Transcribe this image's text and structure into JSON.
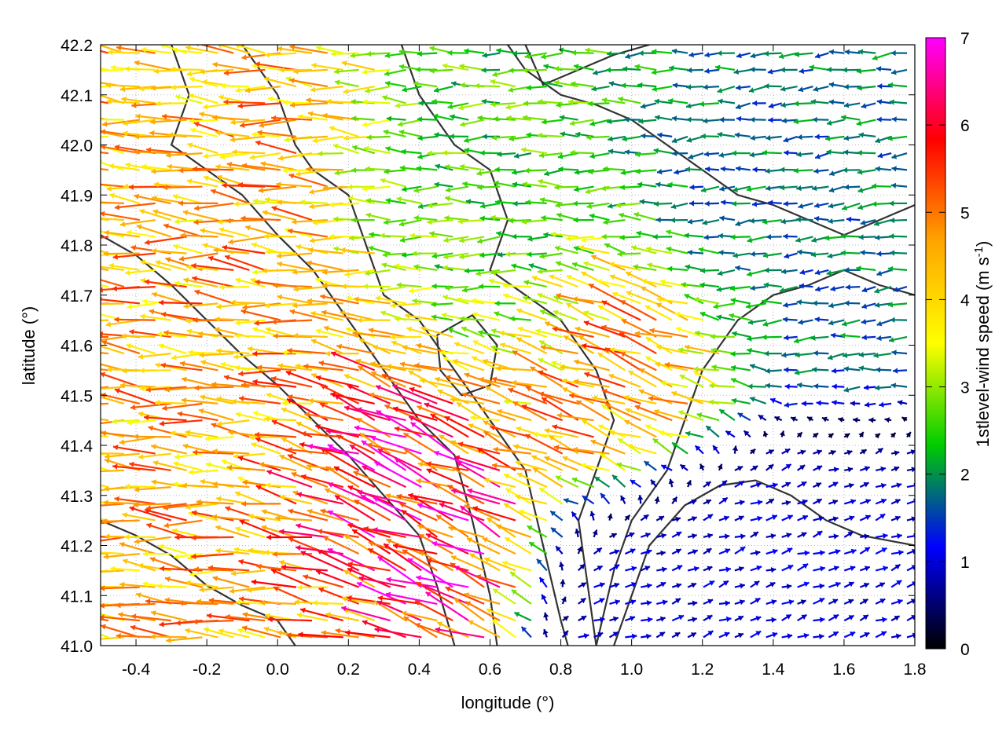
{
  "chart_data": {
    "type": "vector-field",
    "xlabel": "longitude (°)",
    "ylabel": "latitude (°)",
    "xlim": [
      -0.5,
      1.8
    ],
    "ylim": [
      41.0,
      42.2
    ],
    "x_ticks": [
      -0.4,
      -0.2,
      0.0,
      0.2,
      0.4,
      0.6,
      0.8,
      1.0,
      1.2,
      1.4,
      1.6,
      1.8
    ],
    "x_tick_labels": [
      "-0.4",
      "-0.2",
      "0.0",
      "0.2",
      "0.4",
      "0.6",
      "0.8",
      "1.0",
      "1.2",
      "1.4",
      "1.6",
      "1.8"
    ],
    "y_ticks": [
      41.0,
      41.1,
      41.2,
      41.3,
      41.4,
      41.5,
      41.6,
      41.7,
      41.8,
      41.9,
      42.0,
      42.1,
      42.2
    ],
    "y_tick_labels": [
      "41.0",
      "41.1",
      "41.2",
      "41.3",
      "41.4",
      "41.5",
      "41.6",
      "41.7",
      "41.8",
      "41.9",
      "42.0",
      "42.1",
      "42.2"
    ],
    "grid": "dotted",
    "colorbar": {
      "label_main": "1stlevel-wind speed (m s",
      "label_sup": "-1",
      "label_end": ")",
      "range": [
        0,
        7
      ],
      "ticks": [
        "0",
        "1",
        "2",
        "3",
        "4",
        "5",
        "6",
        "7"
      ],
      "palette": [
        "#000000",
        "#0000ff",
        "#00cc00",
        "#ffff00",
        "#ffa500",
        "#ff0000",
        "#ff00ff"
      ]
    },
    "wind_regions": [
      {
        "lon": [
          -0.5,
          0.3
        ],
        "lat": [
          41.0,
          42.2
        ],
        "speed": 4.5,
        "dir_deg": 175
      },
      {
        "lon": [
          0.1,
          0.6
        ],
        "lat": [
          41.15,
          41.55
        ],
        "speed": 6.3,
        "dir_deg": 155
      },
      {
        "lon": [
          0.3,
          0.9
        ],
        "lat": [
          41.55,
          42.2
        ],
        "speed": 2.5,
        "dir_deg": 180
      },
      {
        "lon": [
          0.7,
          1.2
        ],
        "lat": [
          41.4,
          41.7
        ],
        "speed": 4.8,
        "dir_deg": 160
      },
      {
        "lon": [
          1.0,
          1.8
        ],
        "lat": [
          41.0,
          41.35
        ],
        "speed": 1.0,
        "dir_deg": 20
      },
      {
        "lon": [
          1.2,
          1.8
        ],
        "lat": [
          41.6,
          42.2
        ],
        "speed": 1.8,
        "dir_deg": 185
      }
    ],
    "contours": [
      [
        [
          -0.5,
          41.82
        ],
        [
          -0.4,
          41.78
        ],
        [
          -0.3,
          41.72
        ],
        [
          -0.2,
          41.65
        ],
        [
          -0.1,
          41.58
        ],
        [
          0.0,
          41.52
        ],
        [
          0.1,
          41.45
        ],
        [
          0.2,
          41.38
        ],
        [
          0.3,
          41.3
        ],
        [
          0.4,
          41.22
        ],
        [
          0.45,
          41.12
        ],
        [
          0.5,
          41.0
        ]
      ],
      [
        [
          -0.3,
          42.2
        ],
        [
          -0.25,
          42.1
        ],
        [
          -0.3,
          42.0
        ],
        [
          -0.2,
          41.95
        ],
        [
          -0.1,
          41.9
        ],
        [
          0.0,
          41.82
        ],
        [
          0.1,
          41.75
        ],
        [
          0.2,
          41.65
        ],
        [
          0.3,
          41.55
        ],
        [
          0.4,
          41.45
        ],
        [
          0.5,
          41.38
        ],
        [
          0.55,
          41.25
        ],
        [
          0.6,
          41.1
        ],
        [
          0.62,
          41.0
        ]
      ],
      [
        [
          -0.1,
          42.2
        ],
        [
          0.0,
          42.1
        ],
        [
          0.05,
          42.0
        ],
        [
          0.1,
          41.95
        ],
        [
          0.2,
          41.9
        ],
        [
          0.25,
          41.8
        ],
        [
          0.3,
          41.7
        ],
        [
          0.4,
          41.65
        ],
        [
          0.5,
          41.55
        ],
        [
          0.6,
          41.45
        ],
        [
          0.7,
          41.35
        ],
        [
          0.75,
          41.2
        ],
        [
          0.8,
          41.05
        ],
        [
          0.82,
          41.0
        ]
      ],
      [
        [
          0.35,
          42.2
        ],
        [
          0.4,
          42.1
        ],
        [
          0.5,
          42.0
        ],
        [
          0.6,
          41.95
        ],
        [
          0.65,
          41.85
        ],
        [
          0.6,
          41.75
        ],
        [
          0.7,
          41.7
        ],
        [
          0.8,
          41.65
        ],
        [
          0.9,
          41.55
        ],
        [
          0.95,
          41.45
        ],
        [
          0.9,
          41.35
        ],
        [
          0.85,
          41.25
        ],
        [
          0.88,
          41.1
        ],
        [
          0.9,
          41.0
        ]
      ],
      [
        [
          0.95,
          41.0
        ],
        [
          1.0,
          41.1
        ],
        [
          1.05,
          41.2
        ],
        [
          1.15,
          41.28
        ],
        [
          1.25,
          41.32
        ],
        [
          1.35,
          41.33
        ],
        [
          1.45,
          41.3
        ],
        [
          1.55,
          41.25
        ],
        [
          1.65,
          41.22
        ],
        [
          1.8,
          41.2
        ]
      ],
      [
        [
          0.9,
          41.0
        ],
        [
          0.95,
          41.15
        ],
        [
          1.0,
          41.25
        ],
        [
          1.1,
          41.35
        ],
        [
          1.15,
          41.45
        ],
        [
          1.2,
          41.55
        ],
        [
          1.3,
          41.65
        ],
        [
          1.4,
          41.7
        ],
        [
          1.5,
          41.72
        ],
        [
          1.6,
          41.75
        ],
        [
          1.7,
          41.72
        ],
        [
          1.8,
          41.7
        ]
      ],
      [
        [
          0.65,
          42.2
        ],
        [
          0.7,
          42.15
        ],
        [
          0.8,
          42.1
        ],
        [
          0.9,
          42.08
        ],
        [
          1.0,
          42.05
        ],
        [
          1.1,
          42.0
        ],
        [
          1.2,
          41.95
        ],
        [
          1.3,
          41.9
        ],
        [
          1.4,
          41.88
        ],
        [
          1.5,
          41.85
        ],
        [
          1.6,
          41.82
        ],
        [
          1.7,
          41.85
        ],
        [
          1.8,
          41.88
        ]
      ],
      [
        [
          0.7,
          42.2
        ],
        [
          0.75,
          42.12
        ],
        [
          0.85,
          42.15
        ],
        [
          0.95,
          42.18
        ],
        [
          1.05,
          42.2
        ]
      ],
      [
        [
          -0.5,
          41.25
        ],
        [
          -0.4,
          41.22
        ],
        [
          -0.3,
          41.18
        ],
        [
          -0.2,
          41.12
        ],
        [
          -0.1,
          41.08
        ],
        [
          0.0,
          41.05
        ],
        [
          0.05,
          41.0
        ]
      ],
      [
        [
          0.45,
          41.62
        ],
        [
          0.55,
          41.66
        ],
        [
          0.62,
          41.6
        ],
        [
          0.6,
          41.52
        ],
        [
          0.52,
          41.5
        ],
        [
          0.46,
          41.55
        ],
        [
          0.45,
          41.62
        ]
      ]
    ]
  }
}
